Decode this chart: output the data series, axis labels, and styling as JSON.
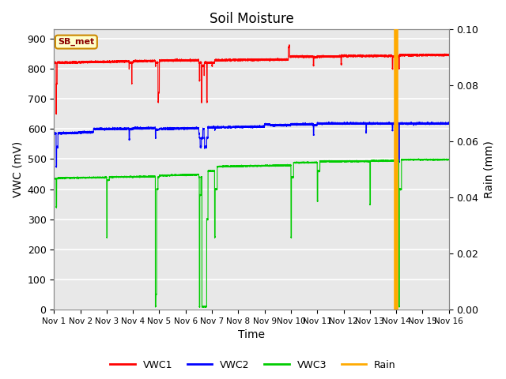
{
  "title": "Soil Moisture",
  "xlabel": "Time",
  "ylabel_left": "VWC (mV)",
  "ylabel_right": "Rain (mm)",
  "xlim": [
    0,
    15
  ],
  "ylim_left": [
    0,
    930
  ],
  "ylim_right": [
    0,
    0.1
  ],
  "yticks_left": [
    0,
    100,
    200,
    300,
    400,
    500,
    600,
    700,
    800,
    900
  ],
  "yticks_right": [
    0.0,
    0.02,
    0.04,
    0.06,
    0.08,
    0.1
  ],
  "xtick_labels": [
    "Nov 1",
    "Nov 2",
    "Nov 3",
    "Nov 4",
    "Nov 5",
    "Nov 6",
    "Nov 7",
    "Nov 8",
    "Nov 9",
    "Nov 10",
    "Nov 11",
    "Nov 12",
    "Nov 13",
    "Nov 14",
    "Nov 15",
    "Nov 16"
  ],
  "annotation_label": "SB_met",
  "vwc1_color": "#ff0000",
  "vwc2_color": "#0000ff",
  "vwc3_color": "#00cc00",
  "rain_color": "#ffaa00",
  "background_color": "#e8e8e8",
  "grid_color": "#ffffff",
  "fig_bg": "#ffffff"
}
